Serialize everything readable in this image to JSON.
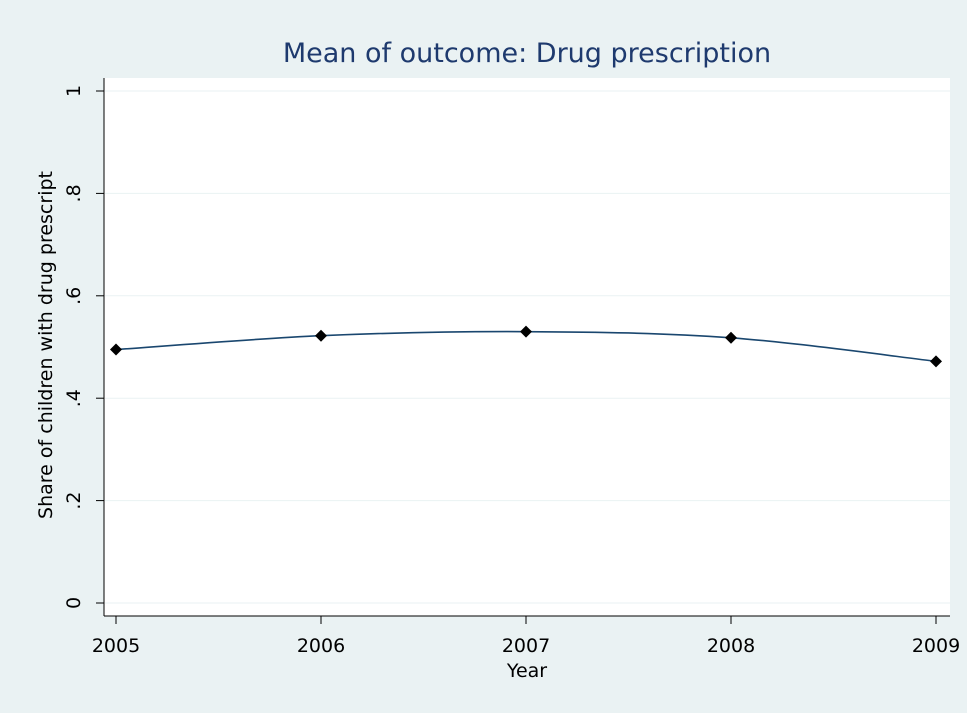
{
  "chart_data": {
    "type": "line",
    "title": "Mean of outcome: Drug prescription",
    "xlabel": "Year",
    "ylabel": "Share of children with drug prescript",
    "x": [
      2005,
      2006,
      2007,
      2008,
      2009
    ],
    "xtick_labels": [
      "2005",
      "2006",
      "2007",
      "2008",
      "2009"
    ],
    "ytick_labels": [
      "0",
      ".2",
      ".4",
      ".6",
      ".8",
      "1"
    ],
    "yticks": [
      0,
      0.2,
      0.4,
      0.6,
      0.8,
      1
    ],
    "series": [
      {
        "values": [
          0.495,
          0.522,
          0.53,
          0.518,
          0.472
        ]
      }
    ],
    "xlim": [
      2005,
      2009
    ],
    "ylim": [
      0,
      1
    ],
    "grid": true,
    "colors": {
      "background": "#eaf2f3",
      "plot_area": "#ffffff",
      "line": "#1a476f",
      "marker": "#000000",
      "title": "#1e3a6e",
      "grid": "#eaf2f3"
    }
  }
}
